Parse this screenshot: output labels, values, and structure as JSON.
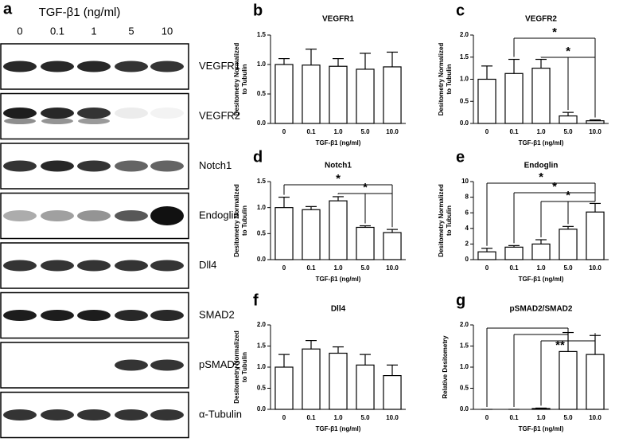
{
  "blot": {
    "panel": "a",
    "title": "TGF-β1 (ng/ml)",
    "lanes": [
      "0",
      "0.1",
      "1",
      "5",
      "10"
    ],
    "rows": [
      "VEGFR1",
      "VEGFR2",
      "Notch1",
      "Endoglin",
      "Dll4",
      "SMAD2",
      "pSMAD2",
      "α-Tubulin"
    ]
  },
  "chart_data": [
    {
      "type": "bar",
      "panel": "b",
      "title": "VEGFR1",
      "xlabel": "TGF-β1 (ng/ml)",
      "ylabel": [
        "Desitometry Normalized",
        "to Tubulin"
      ],
      "categories": [
        "0",
        "0.1",
        "1.0",
        "5.0",
        "10.0"
      ],
      "values": [
        1.0,
        0.99,
        0.97,
        0.92,
        0.96
      ],
      "errors": [
        0.1,
        0.27,
        0.13,
        0.27,
        0.25
      ],
      "ylim": [
        0,
        1.5
      ],
      "yticks": [
        {
          "value": 0,
          "label": "0.0"
        },
        {
          "value": 0.5,
          "label": "0.5"
        },
        {
          "value": 1,
          "label": "1.0"
        },
        {
          "value": 1.5,
          "label": "1.5"
        }
      ],
      "color": "#ffffff",
      "annotations": []
    },
    {
      "type": "bar",
      "panel": "c",
      "title": "VEGFR2",
      "xlabel": "TGF-β1 (ng/ml)",
      "ylabel": [
        "Desitometry Normalized",
        "to Tubulin"
      ],
      "categories": [
        "0",
        "0.1",
        "1.0",
        "5.0",
        "10.0"
      ],
      "values": [
        1.0,
        1.13,
        1.25,
        0.17,
        0.06
      ],
      "errors": [
        0.3,
        0.32,
        0.2,
        0.08,
        0.02
      ],
      "ylim": [
        0,
        2
      ],
      "yticks": [
        {
          "value": 0,
          "label": "0.0"
        },
        {
          "value": 0.5,
          "label": "0.5"
        },
        {
          "value": 1,
          "label": "1.0"
        },
        {
          "value": 1.5,
          "label": "1.5"
        },
        {
          "value": 2,
          "label": "2.0"
        }
      ],
      "color": "#ffffff",
      "annotations": [
        "*",
        "*"
      ]
    },
    {
      "type": "bar",
      "panel": "d",
      "title": "Notch1",
      "xlabel": "TGF-β1 (ng/ml)",
      "ylabel": [
        "Desitometry Normalized",
        "to Tubulin"
      ],
      "categories": [
        "0",
        "0.1",
        "1.0",
        "5.0",
        "10.0"
      ],
      "values": [
        1.0,
        0.96,
        1.13,
        0.62,
        0.52
      ],
      "errors": [
        0.2,
        0.06,
        0.08,
        0.03,
        0.06
      ],
      "ylim": [
        0,
        1.5
      ],
      "yticks": [
        {
          "value": 0,
          "label": "0.0"
        },
        {
          "value": 0.5,
          "label": "0.5"
        },
        {
          "value": 1,
          "label": "1.0"
        },
        {
          "value": 1.5,
          "label": "1.5"
        }
      ],
      "color": "#ffffff",
      "annotations": [
        "*",
        "*"
      ]
    },
    {
      "type": "bar",
      "panel": "e",
      "title": "Endoglin",
      "xlabel": "TGF-β1 (ng/ml)",
      "ylabel": [
        "Desitometry Normalized",
        "to Tubulin"
      ],
      "categories": [
        "0",
        "0.1",
        "1.0",
        "5.0",
        "10.0"
      ],
      "values": [
        1.0,
        1.6,
        2.0,
        3.9,
        6.1
      ],
      "errors": [
        0.45,
        0.2,
        0.55,
        0.35,
        1.1
      ],
      "ylim": [
        0,
        10
      ],
      "yticks": [
        0,
        2,
        4,
        6,
        8,
        10
      ],
      "color": "#ffffff",
      "annotations": [
        "*",
        "*",
        "*"
      ]
    },
    {
      "type": "bar",
      "panel": "f",
      "title": "Dll4",
      "xlabel": "TGF-β1 (ng/ml)",
      "ylabel": [
        "Desitometry Normalized",
        "to Tubulin"
      ],
      "categories": [
        "0",
        "0.1",
        "1.0",
        "5.0",
        "10.0"
      ],
      "values": [
        1.0,
        1.43,
        1.33,
        1.05,
        0.8
      ],
      "errors": [
        0.3,
        0.2,
        0.15,
        0.25,
        0.25
      ],
      "ylim": [
        0,
        2
      ],
      "yticks": [
        {
          "value": 0,
          "label": "0.0"
        },
        {
          "value": 0.5,
          "label": "0.5"
        },
        {
          "value": 1,
          "label": "1.0"
        },
        {
          "value": 1.5,
          "label": "1.5"
        },
        {
          "value": 2,
          "label": "2.0"
        }
      ],
      "color": "#ffffff",
      "annotations": []
    },
    {
      "type": "bar",
      "panel": "g",
      "title": "pSMAD2/SMAD2",
      "xlabel": "TGF-β1 (ng/ml)",
      "ylabel": [
        "Relative Desitometry"
      ],
      "categories": [
        "0",
        "0.1",
        "1.0",
        "5.0",
        "10.0"
      ],
      "values": [
        0,
        0,
        0.02,
        1.37,
        1.3
      ],
      "errors": [
        0,
        0,
        0.01,
        0.45,
        0.45
      ],
      "ylim": [
        0,
        2
      ],
      "yticks": [
        {
          "value": 0,
          "label": "0.0"
        },
        {
          "value": 0.5,
          "label": "0.5"
        },
        {
          "value": 1,
          "label": "1.0"
        },
        {
          "value": 1.5,
          "label": "1.5"
        },
        {
          "value": 2,
          "label": "2.0"
        }
      ],
      "color": "#ffffff",
      "annotations": [
        "**"
      ]
    }
  ]
}
